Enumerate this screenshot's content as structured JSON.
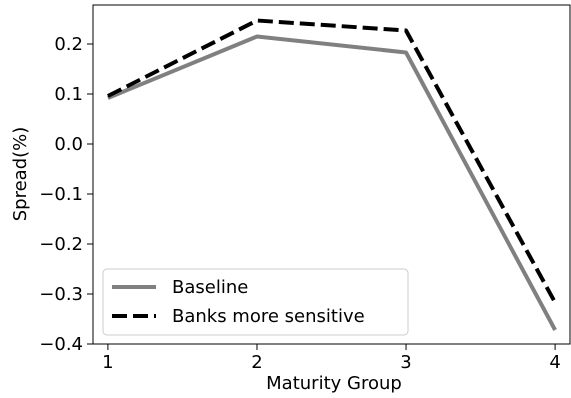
{
  "chart_data": {
    "type": "line",
    "title": "",
    "xlabel": "Maturity Group",
    "ylabel": "Spread(%)",
    "x": [
      1,
      2,
      3,
      4
    ],
    "xticks": [
      "1",
      "2",
      "3",
      "4"
    ],
    "xlim": [
      0.9,
      4.1
    ],
    "ylim": [
      -0.4,
      0.278
    ],
    "yticks": [
      "0.2",
      "0.1",
      "0.0",
      "−0.1",
      "−0.2",
      "−0.3",
      "−0.4"
    ],
    "ytick_values": [
      0.2,
      0.1,
      0.0,
      -0.1,
      -0.2,
      -0.3,
      -0.4
    ],
    "grid": false,
    "legend_position": "bottom-left",
    "series": [
      {
        "name": "Baseline",
        "values": [
          0.092,
          0.215,
          0.183,
          -0.372
        ],
        "color": "#808080",
        "style": "solid"
      },
      {
        "name": "Banks more sensitive",
        "values": [
          0.096,
          0.247,
          0.227,
          -0.317
        ],
        "color": "#000000",
        "style": "dashed"
      }
    ]
  }
}
